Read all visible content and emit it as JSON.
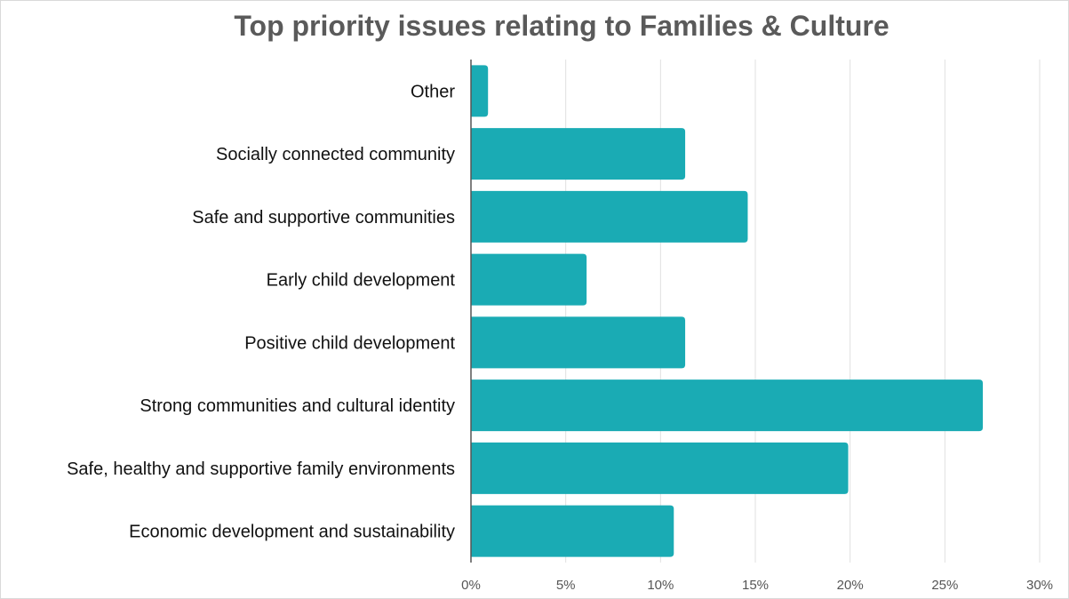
{
  "chart_data": {
    "type": "bar",
    "orientation": "horizontal",
    "title": "Top priority issues relating to Families & Culture",
    "xlabel": "",
    "ylabel": "",
    "categories": [
      "Other",
      "Socially connected community",
      "Safe and supportive communities",
      "Early child development",
      "Positive child development",
      "Strong communities and cultural identity",
      "Safe, healthy and supportive family environments",
      "Economic development and sustainability"
    ],
    "values": [
      0.9,
      11.3,
      14.6,
      6.1,
      11.3,
      27.0,
      19.9,
      10.7
    ],
    "xlim": [
      0,
      30
    ],
    "ticks": [
      0,
      5,
      10,
      15,
      20,
      25,
      30
    ],
    "tick_labels": [
      "0%",
      "5%",
      "10%",
      "15%",
      "20%",
      "25%",
      "30%"
    ],
    "grid": true,
    "bar_color": "#1aabb4",
    "legend": "none"
  }
}
